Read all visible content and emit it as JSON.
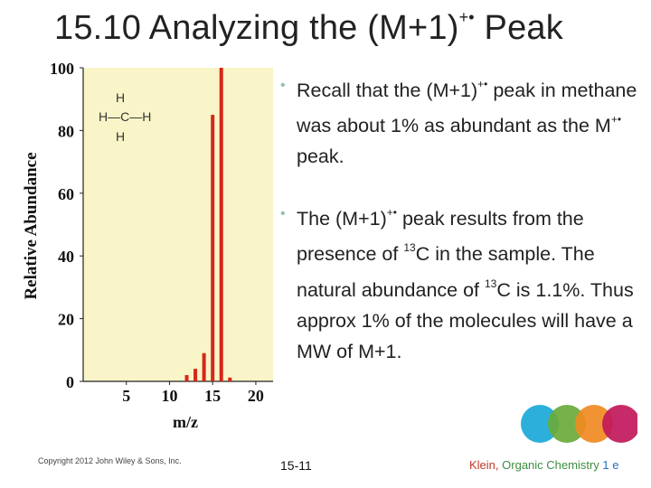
{
  "title": {
    "main": "15.10 Analyzing the (M+1)",
    "sup": "+•",
    "tail": " Peak"
  },
  "bullets": [
    {
      "parts": [
        "Recall that the (M+1)",
        "+•",
        " peak in methane was about 1% as abundant as the M",
        "+•",
        " peak."
      ]
    },
    {
      "parts": [
        "The (M+1)",
        "+•",
        " peak results from the presence of ",
        "13",
        "C in the sample. The natural abundance of ",
        "13",
        "C is 1.1%. Thus approx 1% of the molecules will have a MW of M+1."
      ]
    }
  ],
  "structure": {
    "top": "H",
    "middle": "H—C—H",
    "bottom": "H"
  },
  "footer": {
    "copyright": "Copyright 2012 John Wiley & Sons, Inc.",
    "slide_number": "15-11",
    "author": "Klein,",
    "book": " Organic Chemistry",
    "edition": " 1 e"
  },
  "colors": {
    "bar": "#d62718",
    "plot_bg": "#faf5c8",
    "logo": [
      "#1aa9d8",
      "#6aaa3a",
      "#f08a22",
      "#c2185b"
    ]
  },
  "chart_data": {
    "type": "bar",
    "xlabel": "m/z",
    "ylabel": "Relative Abundance",
    "x_ticks": [
      5,
      10,
      15,
      20
    ],
    "y_ticks": [
      0,
      20,
      40,
      60,
      80,
      100
    ],
    "xlim": [
      0,
      22
    ],
    "ylim": [
      0,
      100
    ],
    "x": [
      12,
      13,
      14,
      15,
      16,
      17
    ],
    "values": [
      2,
      4,
      9,
      85,
      100,
      1.2
    ]
  }
}
